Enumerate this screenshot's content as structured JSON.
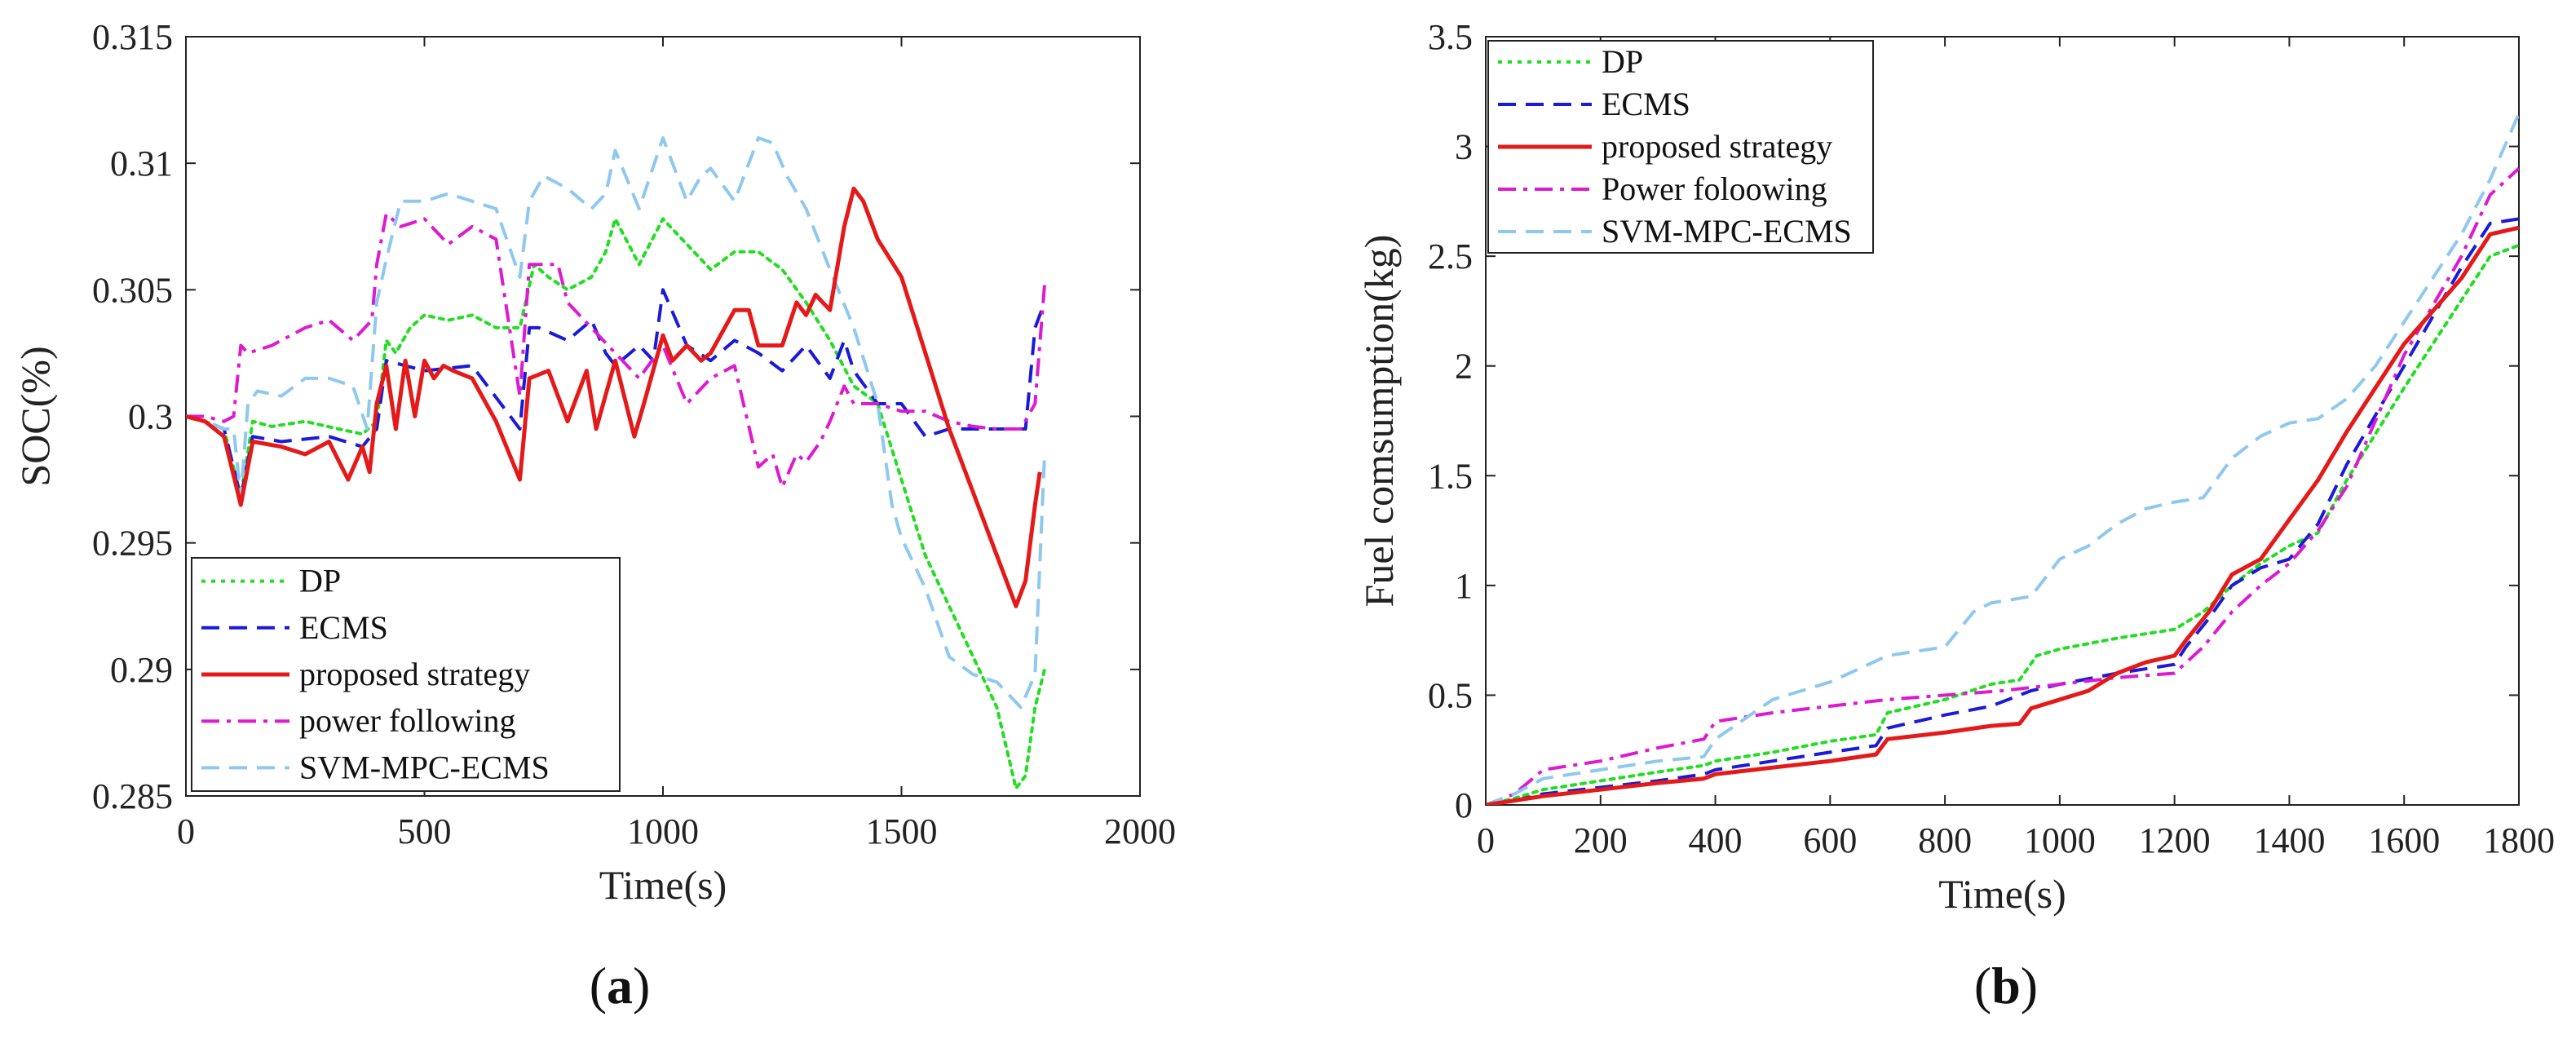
{
  "chart_data": [
    {
      "type": "line",
      "panel_label": "a",
      "xlabel": "Time(s)",
      "ylabel": "SOC(%)",
      "xlim": [
        0,
        2000
      ],
      "ylim": [
        0.285,
        0.315
      ],
      "xticks": [
        0,
        500,
        1000,
        1500,
        2000
      ],
      "yticks": [
        0.285,
        0.29,
        0.295,
        0.3,
        0.305,
        0.31,
        0.315
      ],
      "xtick_labels": [
        "0",
        "500",
        "1000",
        "1500",
        "2000"
      ],
      "ytick_labels": [
        "0.285",
        "0.29",
        "0.295",
        "0.3",
        "0.305",
        "0.31",
        "0.315"
      ],
      "legend_position": "bottom-left",
      "series": [
        {
          "name": "DP",
          "color": "#22dd22",
          "dash": "dotted",
          "x": [
            0,
            40,
            80,
            115,
            140,
            180,
            250,
            320,
            370,
            400,
            420,
            440,
            470,
            500,
            550,
            600,
            650,
            700,
            730,
            760,
            800,
            850,
            880,
            900,
            950,
            1000,
            1050,
            1100,
            1150,
            1200,
            1250,
            1300,
            1350,
            1400,
            1450,
            1500,
            1550,
            1600,
            1650,
            1700,
            1740,
            1760,
            1780,
            1800
          ],
          "y": [
            0.3,
            0.2998,
            0.2995,
            0.2968,
            0.2998,
            0.2996,
            0.2998,
            0.2995,
            0.2993,
            0.2998,
            0.303,
            0.3025,
            0.3035,
            0.304,
            0.3038,
            0.304,
            0.3035,
            0.3035,
            0.306,
            0.3055,
            0.305,
            0.3055,
            0.3065,
            0.3078,
            0.306,
            0.3078,
            0.3068,
            0.3058,
            0.3065,
            0.3065,
            0.3058,
            0.3045,
            0.303,
            0.3012,
            0.3005,
            0.2975,
            0.2945,
            0.2925,
            0.2905,
            0.2885,
            0.2853,
            0.2858,
            0.2885,
            0.29
          ]
        },
        {
          "name": "ECMS",
          "color": "#1a1ad8",
          "dash": "dashed",
          "x": [
            0,
            40,
            80,
            115,
            140,
            200,
            300,
            370,
            400,
            420,
            500,
            600,
            700,
            720,
            740,
            800,
            850,
            880,
            900,
            950,
            980,
            1000,
            1050,
            1100,
            1150,
            1200,
            1250,
            1300,
            1350,
            1380,
            1400,
            1450,
            1500,
            1550,
            1600,
            1650,
            1700,
            1760,
            1780,
            1800
          ],
          "y": [
            0.3,
            0.2998,
            0.2995,
            0.2968,
            0.2992,
            0.299,
            0.2992,
            0.2988,
            0.2995,
            0.3022,
            0.3018,
            0.302,
            0.2995,
            0.3035,
            0.3035,
            0.303,
            0.3038,
            0.3025,
            0.302,
            0.3028,
            0.3022,
            0.305,
            0.3028,
            0.3022,
            0.303,
            0.3025,
            0.3018,
            0.3028,
            0.3015,
            0.303,
            0.3018,
            0.3005,
            0.3005,
            0.2992,
            0.2995,
            0.2995,
            0.2995,
            0.2995,
            0.3035,
            0.3045
          ]
        },
        {
          "name": "proposed strategy",
          "color": "#e41a1a",
          "dash": "solid",
          "x": [
            0,
            40,
            80,
            115,
            140,
            200,
            250,
            300,
            340,
            370,
            385,
            400,
            420,
            440,
            460,
            480,
            500,
            520,
            540,
            560,
            600,
            650,
            700,
            720,
            760,
            800,
            840,
            860,
            900,
            940,
            960,
            1000,
            1020,
            1050,
            1080,
            1100,
            1150,
            1180,
            1200,
            1250,
            1280,
            1300,
            1320,
            1350,
            1380,
            1400,
            1420,
            1450,
            1500,
            1550,
            1600,
            1650,
            1700,
            1740,
            1760,
            1780,
            1790
          ],
          "y": [
            0.3,
            0.2998,
            0.2992,
            0.2965,
            0.299,
            0.2988,
            0.2985,
            0.299,
            0.2975,
            0.2988,
            0.2978,
            0.3005,
            0.302,
            0.2995,
            0.3022,
            0.3,
            0.3022,
            0.3015,
            0.302,
            0.3018,
            0.3015,
            0.2998,
            0.2975,
            0.3015,
            0.3018,
            0.2998,
            0.3018,
            0.2995,
            0.3022,
            0.2992,
            0.3005,
            0.3032,
            0.3022,
            0.3028,
            0.3022,
            0.3025,
            0.3042,
            0.3042,
            0.3028,
            0.3028,
            0.3045,
            0.304,
            0.3048,
            0.3042,
            0.3075,
            0.309,
            0.3085,
            0.307,
            0.3055,
            0.3025,
            0.2995,
            0.297,
            0.2945,
            0.2925,
            0.2935,
            0.2965,
            0.2978
          ]
        },
        {
          "name": "power following",
          "color": "#dd1ad0",
          "dash": "dashdot",
          "x": [
            0,
            40,
            80,
            100,
            115,
            130,
            180,
            250,
            300,
            350,
            390,
            400,
            420,
            450,
            500,
            550,
            600,
            650,
            700,
            720,
            780,
            800,
            850,
            900,
            950,
            1000,
            1050,
            1100,
            1150,
            1200,
            1230,
            1250,
            1280,
            1300,
            1330,
            1350,
            1380,
            1400,
            1450,
            1500,
            1550,
            1600,
            1650,
            1700,
            1750,
            1780,
            1800
          ],
          "y": [
            0.3,
            0.3,
            0.2998,
            0.3,
            0.3028,
            0.3025,
            0.3028,
            0.3035,
            0.3038,
            0.303,
            0.3038,
            0.306,
            0.308,
            0.3075,
            0.3078,
            0.3068,
            0.3075,
            0.307,
            0.3008,
            0.306,
            0.306,
            0.3045,
            0.3035,
            0.3025,
            0.3015,
            0.3028,
            0.3005,
            0.3015,
            0.302,
            0.298,
            0.2985,
            0.2972,
            0.2985,
            0.2982,
            0.299,
            0.2998,
            0.3012,
            0.3005,
            0.3005,
            0.3002,
            0.3002,
            0.2998,
            0.2996,
            0.2995,
            0.2995,
            0.3005,
            0.3052
          ]
        },
        {
          "name": "SVM-MPC-ECMS",
          "color": "#8fc8ef",
          "dash": "dashed",
          "x": [
            0,
            40,
            80,
            100,
            115,
            130,
            150,
            200,
            250,
            300,
            350,
            380,
            400,
            420,
            450,
            500,
            550,
            600,
            650,
            700,
            720,
            750,
            800,
            850,
            880,
            900,
            950,
            1000,
            1050,
            1080,
            1100,
            1150,
            1200,
            1230,
            1260,
            1300,
            1350,
            1400,
            1450,
            1480,
            1500,
            1550,
            1600,
            1650,
            1700,
            1750,
            1780,
            1800
          ],
          "y": [
            0.3,
            0.2998,
            0.2995,
            0.2995,
            0.2968,
            0.3005,
            0.301,
            0.3008,
            0.3015,
            0.3015,
            0.3012,
            0.2995,
            0.3045,
            0.3062,
            0.3085,
            0.3085,
            0.3088,
            0.3085,
            0.3082,
            0.3055,
            0.3085,
            0.3095,
            0.309,
            0.3082,
            0.3088,
            0.3105,
            0.3082,
            0.311,
            0.3085,
            0.3095,
            0.3098,
            0.3085,
            0.311,
            0.3108,
            0.3095,
            0.3082,
            0.3058,
            0.3035,
            0.3005,
            0.2965,
            0.2952,
            0.2932,
            0.2905,
            0.2898,
            0.2895,
            0.2885,
            0.2898,
            0.2985
          ]
        }
      ]
    },
    {
      "type": "line",
      "panel_label": "b",
      "xlabel": "Time(s)",
      "ylabel": "Fuel comsumption(kg)",
      "xlim": [
        0,
        1800
      ],
      "ylim": [
        0,
        3.5
      ],
      "xticks": [
        0,
        200,
        400,
        600,
        800,
        1000,
        1200,
        1400,
        1600,
        1800
      ],
      "yticks": [
        0,
        0.5,
        1,
        1.5,
        2,
        2.5,
        3,
        3.5
      ],
      "xtick_labels": [
        "0",
        "200",
        "400",
        "600",
        "800",
        "1000",
        "1200",
        "1400",
        "1600",
        "1800"
      ],
      "ytick_labels": [
        "0",
        "0.5",
        "1",
        "1.5",
        "2",
        "2.5",
        "3",
        "3.5"
      ],
      "legend_position": "top-left",
      "series": [
        {
          "name": "DP",
          "color": "#22dd22",
          "dash": "dotted",
          "x": [
            0,
            50,
            100,
            200,
            300,
            380,
            400,
            500,
            600,
            680,
            700,
            800,
            880,
            930,
            960,
            1000,
            1100,
            1200,
            1250,
            1280,
            1300,
            1350,
            1400,
            1450,
            1500,
            1600,
            1700,
            1750,
            1800
          ],
          "y": [
            0,
            0.03,
            0.07,
            0.11,
            0.15,
            0.18,
            0.2,
            0.24,
            0.29,
            0.32,
            0.42,
            0.48,
            0.55,
            0.57,
            0.68,
            0.71,
            0.76,
            0.8,
            0.88,
            0.95,
            1.0,
            1.1,
            1.18,
            1.24,
            1.48,
            1.9,
            2.3,
            2.5,
            2.55
          ]
        },
        {
          "name": "ECMS",
          "color": "#1a1ad8",
          "dash": "dashed",
          "x": [
            0,
            50,
            100,
            200,
            300,
            380,
            400,
            500,
            600,
            680,
            700,
            800,
            880,
            950,
            1000,
            1100,
            1200,
            1220,
            1260,
            1300,
            1350,
            1400,
            1450,
            1500,
            1600,
            1700,
            1750,
            1800
          ],
          "y": [
            0,
            0.02,
            0.05,
            0.08,
            0.11,
            0.14,
            0.16,
            0.2,
            0.24,
            0.27,
            0.35,
            0.41,
            0.45,
            0.52,
            0.55,
            0.6,
            0.64,
            0.72,
            0.85,
            1.0,
            1.08,
            1.12,
            1.28,
            1.55,
            2.0,
            2.45,
            2.65,
            2.67
          ]
        },
        {
          "name": "proposed strategy",
          "color": "#e41a1a",
          "dash": "solid",
          "x": [
            0,
            50,
            100,
            200,
            300,
            380,
            400,
            500,
            600,
            680,
            700,
            800,
            880,
            930,
            950,
            1000,
            1050,
            1100,
            1150,
            1200,
            1220,
            1260,
            1300,
            1350,
            1400,
            1450,
            1500,
            1550,
            1600,
            1700,
            1750,
            1800
          ],
          "y": [
            0,
            0.02,
            0.04,
            0.07,
            0.1,
            0.12,
            0.14,
            0.17,
            0.2,
            0.23,
            0.3,
            0.33,
            0.36,
            0.37,
            0.44,
            0.48,
            0.52,
            0.6,
            0.65,
            0.68,
            0.75,
            0.88,
            1.05,
            1.12,
            1.3,
            1.48,
            1.7,
            1.9,
            2.1,
            2.4,
            2.6,
            2.63
          ]
        },
        {
          "name": "Power foloowing",
          "color": "#dd1ad0",
          "dash": "dashdot",
          "x": [
            0,
            50,
            100,
            200,
            300,
            380,
            400,
            500,
            600,
            700,
            800,
            900,
            1000,
            1100,
            1200,
            1250,
            1300,
            1350,
            1400,
            1450,
            1500,
            1550,
            1600,
            1700,
            1750,
            1800
          ],
          "y": [
            0,
            0.05,
            0.16,
            0.2,
            0.26,
            0.3,
            0.38,
            0.42,
            0.45,
            0.48,
            0.5,
            0.52,
            0.55,
            0.58,
            0.6,
            0.72,
            0.88,
            1.0,
            1.1,
            1.25,
            1.45,
            1.75,
            2.05,
            2.5,
            2.78,
            2.9
          ]
        },
        {
          "name": "SVM-MPC-ECMS",
          "color": "#8fc8ef",
          "dash": "dashed",
          "x": [
            0,
            50,
            100,
            200,
            300,
            380,
            400,
            500,
            600,
            700,
            750,
            800,
            850,
            880,
            950,
            1000,
            1050,
            1100,
            1150,
            1200,
            1250,
            1300,
            1350,
            1400,
            1450,
            1500,
            1550,
            1600,
            1700,
            1750,
            1800
          ],
          "y": [
            0,
            0.05,
            0.12,
            0.16,
            0.2,
            0.22,
            0.3,
            0.48,
            0.56,
            0.68,
            0.7,
            0.72,
            0.88,
            0.92,
            0.95,
            1.12,
            1.18,
            1.28,
            1.35,
            1.38,
            1.4,
            1.58,
            1.68,
            1.74,
            1.76,
            1.85,
            2.0,
            2.2,
            2.6,
            2.85,
            3.15
          ]
        }
      ]
    }
  ]
}
